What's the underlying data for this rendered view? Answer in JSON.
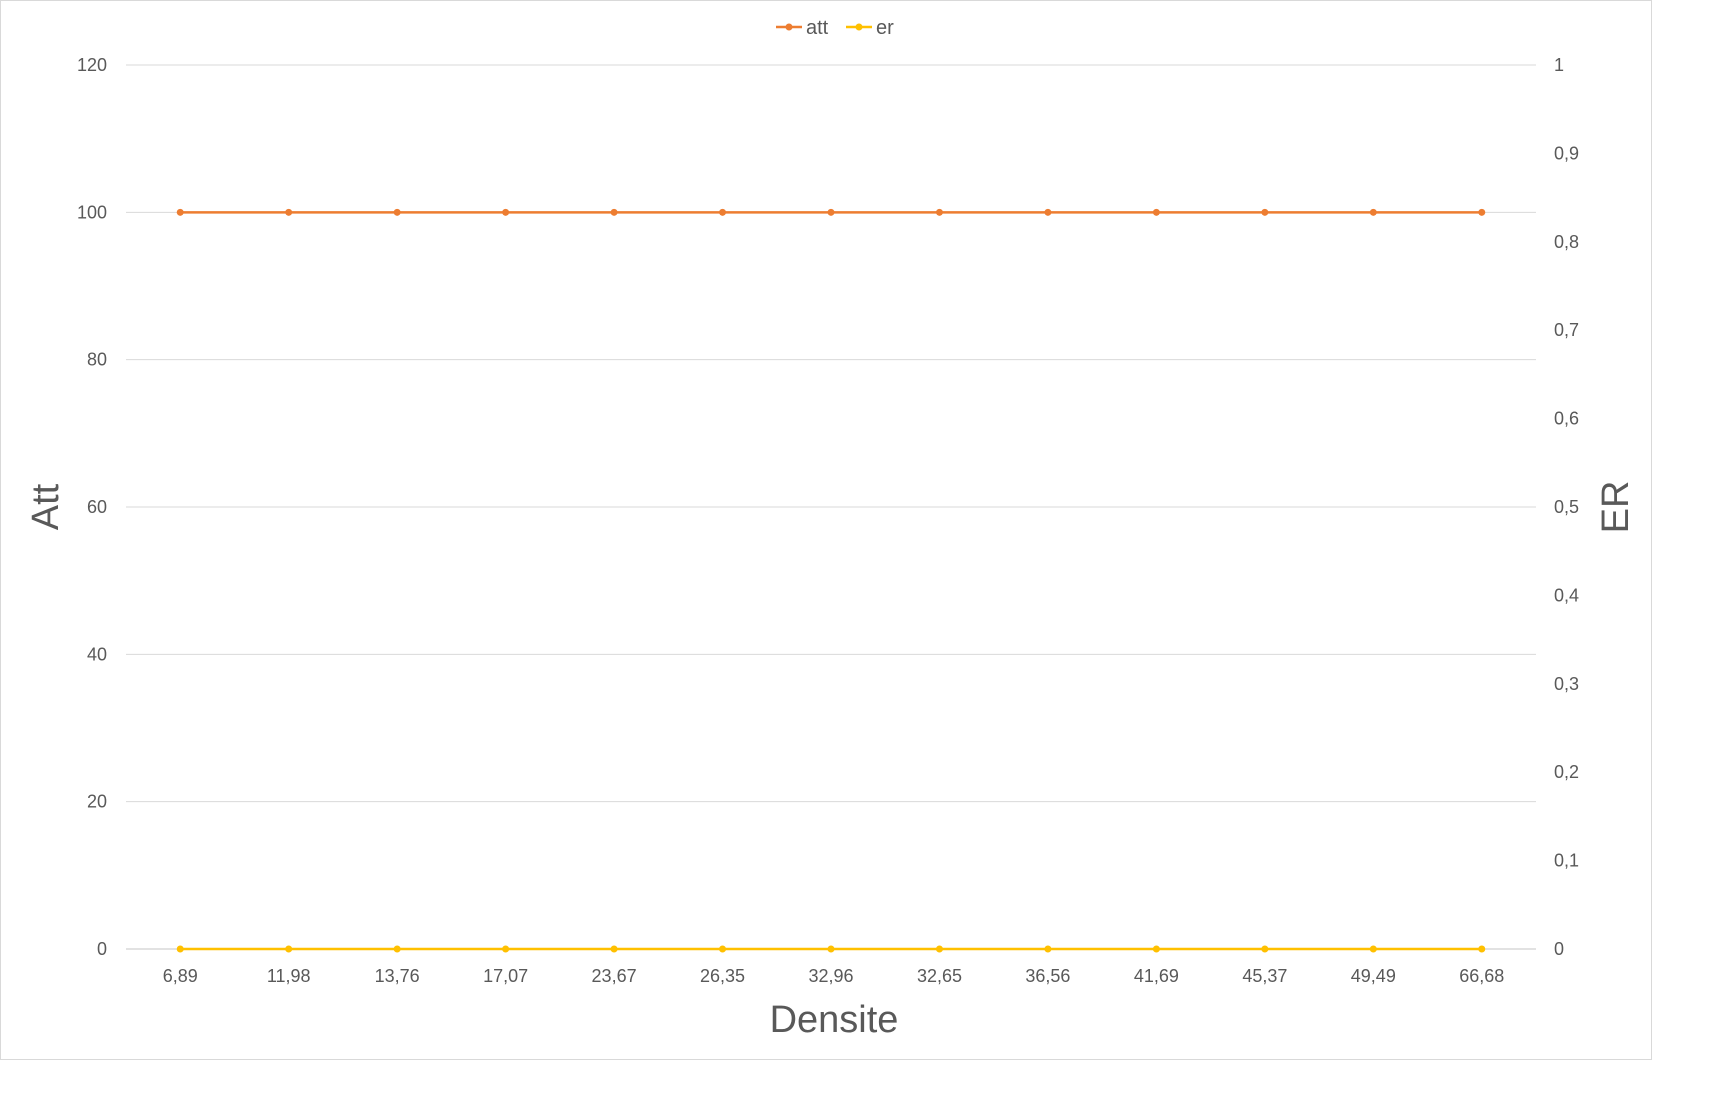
{
  "chart_data": {
    "type": "line",
    "title": "",
    "xlabel": "Densite",
    "ylabel": "Att",
    "y2label": "ER",
    "categories": [
      "6,89",
      "11,98",
      "13,76",
      "17,07",
      "23,67",
      "26,35",
      "32,96",
      "32,65",
      "36,56",
      "41,69",
      "45,37",
      "49,49",
      "66,68"
    ],
    "ylim": [
      0,
      120
    ],
    "yticks": [
      "0",
      "20",
      "40",
      "60",
      "80",
      "100",
      "120"
    ],
    "y2lim": [
      0,
      1
    ],
    "y2ticks": [
      "0",
      "0,1",
      "0,2",
      "0,3",
      "0,4",
      "0,5",
      "0,6",
      "0,7",
      "0,8",
      "0,9",
      "1"
    ],
    "grid": true,
    "legend_position": "top-center",
    "series": [
      {
        "name": "att",
        "axis": "left",
        "color": "#ED7D31",
        "values": [
          100,
          100,
          100,
          100,
          100,
          100,
          100,
          100,
          100,
          100,
          100,
          100,
          100
        ]
      },
      {
        "name": "er",
        "axis": "right",
        "color": "#FFC000",
        "values": [
          0,
          0,
          0,
          0,
          0,
          0,
          0,
          0,
          0,
          0,
          0,
          0,
          0
        ]
      }
    ]
  }
}
